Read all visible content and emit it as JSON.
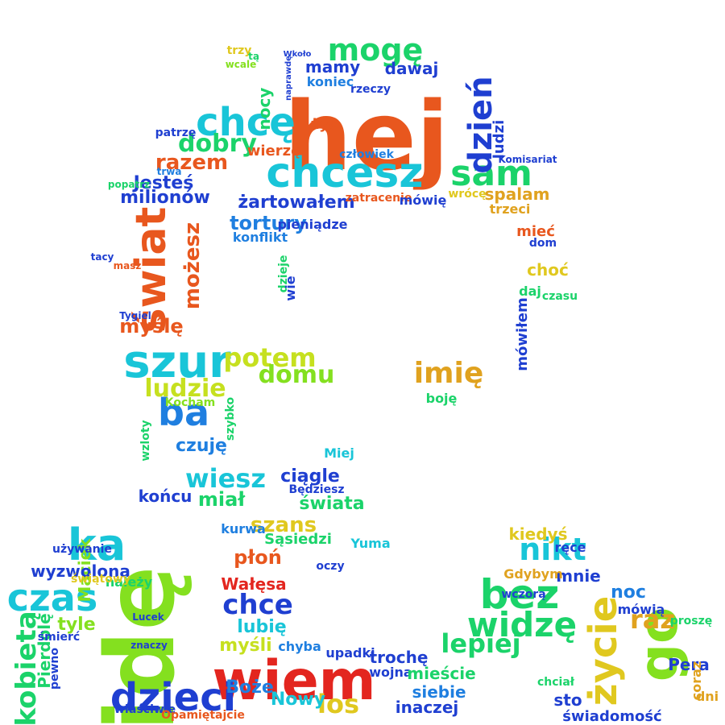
{
  "words": [
    {
      "text": "hej",
      "color": "#e8571e"
    },
    {
      "text": "idę",
      "color": "#84e01f"
    },
    {
      "text": "wiem",
      "color": "#e3261f"
    },
    {
      "text": "chcesz",
      "color": "#19c5d8"
    },
    {
      "text": "dzieci",
      "color": "#1f3fd1"
    },
    {
      "text": "szur",
      "color": "#19c5d8"
    },
    {
      "text": "świat",
      "color": "#e8571e"
    },
    {
      "text": "czas",
      "color": "#19c5d8"
    },
    {
      "text": "go",
      "color": "#84e01f"
    },
    {
      "text": "ka",
      "color": "#19c5d8"
    },
    {
      "text": "ba",
      "color": "#1f7fe0"
    },
    {
      "text": "bez",
      "color": "#1bd36a"
    },
    {
      "text": "widzę",
      "color": "#1bd36a"
    },
    {
      "text": "życie",
      "color": "#e0c81f"
    },
    {
      "text": "chcę",
      "color": "#19c5d8"
    },
    {
      "text": "mogę",
      "color": "#1bd36a"
    },
    {
      "text": "sam",
      "color": "#1bd36a"
    },
    {
      "text": "dzień",
      "color": "#1f3fd1"
    },
    {
      "text": "potem",
      "color": "#c6e01f"
    },
    {
      "text": "ludzie",
      "color": "#c6e01f"
    },
    {
      "text": "domu",
      "color": "#84e01f"
    },
    {
      "text": "imię",
      "color": "#e0a21f"
    },
    {
      "text": "wiesz",
      "color": "#19c5d8"
    },
    {
      "text": "chce",
      "color": "#1f3fd1"
    },
    {
      "text": "lepiej",
      "color": "#1bd36a"
    },
    {
      "text": "nikt",
      "color": "#19c5d8"
    },
    {
      "text": "raz",
      "color": "#e0a21f"
    },
    {
      "text": "kobietą",
      "color": "#1bd36a"
    },
    {
      "text": "dobry",
      "color": "#1bd36a"
    },
    {
      "text": "razem",
      "color": "#e8571e"
    },
    {
      "text": "milionów",
      "color": "#1f3fd1"
    },
    {
      "text": "Jesteś",
      "color": "#1f3fd1"
    },
    {
      "text": "żartowałem",
      "color": "#1f3fd1"
    },
    {
      "text": "tortury",
      "color": "#1f7fe0"
    },
    {
      "text": "mamy",
      "color": "#1f3fd1"
    },
    {
      "text": "dawaj",
      "color": "#1f3fd1"
    },
    {
      "text": "koniec",
      "color": "#1f7fe0"
    },
    {
      "text": "możesz",
      "color": "#e8571e"
    },
    {
      "text": "myślę",
      "color": "#e8571e"
    },
    {
      "text": "czuję",
      "color": "#1f7fe0"
    },
    {
      "text": "miał",
      "color": "#1bd36a"
    },
    {
      "text": "końcu",
      "color": "#1f3fd1"
    },
    {
      "text": "ciągle",
      "color": "#1f3fd1"
    },
    {
      "text": "świata",
      "color": "#1bd36a"
    },
    {
      "text": "szans",
      "color": "#e0c81f"
    },
    {
      "text": "Maciek",
      "color": "#84e01f"
    },
    {
      "text": "wyzwolona",
      "color": "#1f3fd1"
    },
    {
      "text": "Pierdolę",
      "color": "#1bd36a"
    },
    {
      "text": "tyle",
      "color": "#84e01f"
    },
    {
      "text": "lubię",
      "color": "#19c5d8"
    },
    {
      "text": "myśli",
      "color": "#c6e01f"
    },
    {
      "text": "Boże",
      "color": "#1f7fe0"
    },
    {
      "text": "los",
      "color": "#e0c81f"
    },
    {
      "text": "Nowy",
      "color": "#19c5d8"
    },
    {
      "text": "płoń",
      "color": "#e8571e"
    },
    {
      "text": "Wałęsa",
      "color": "#e3261f"
    },
    {
      "text": "trochę",
      "color": "#1f3fd1"
    },
    {
      "text": "wojna",
      "color": "#1f3fd1"
    },
    {
      "text": "inaczej",
      "color": "#1f3fd1"
    },
    {
      "text": "siebie",
      "color": "#1f7fe0"
    },
    {
      "text": "mieście",
      "color": "#1bd36a"
    },
    {
      "text": "mnie",
      "color": "#1f3fd1"
    },
    {
      "text": "kiedyś",
      "color": "#e0c81f"
    },
    {
      "text": "noc",
      "color": "#1f7fe0"
    },
    {
      "text": "mówią",
      "color": "#1f3fd1"
    },
    {
      "text": "Pera",
      "color": "#1f3fd1"
    },
    {
      "text": "coraz",
      "color": "#e0a21f"
    },
    {
      "text": "dni",
      "color": "#e0a21f"
    },
    {
      "text": "sto",
      "color": "#1f3fd1"
    },
    {
      "text": "świadomość",
      "color": "#1f3fd1"
    },
    {
      "text": "spalam",
      "color": "#e0a21f"
    },
    {
      "text": "mieć",
      "color": "#e8571e"
    },
    {
      "text": "choć",
      "color": "#e0c81f"
    },
    {
      "text": "mówiłem",
      "color": "#1f3fd1"
    },
    {
      "text": "Sąsiedzi",
      "color": "#1bd36a"
    },
    {
      "text": "Yuma",
      "color": "#19c5d8"
    },
    {
      "text": "Będziesz",
      "color": "#1f3fd1"
    },
    {
      "text": "kurwa",
      "color": "#1f7fe0"
    },
    {
      "text": "chyba",
      "color": "#1f7fe0"
    },
    {
      "text": "upadki",
      "color": "#1f3fd1"
    },
    {
      "text": "konflikt",
      "color": "#1f7fe0"
    },
    {
      "text": "pieniądze",
      "color": "#1f3fd1"
    },
    {
      "text": "wierzę",
      "color": "#e8571e"
    },
    {
      "text": "patrzę",
      "color": "#1f3fd1"
    },
    {
      "text": "życ",
      "color": "#e8571e"
    },
    {
      "text": "rzeczy",
      "color": "#1f3fd1"
    },
    {
      "text": "ludzi",
      "color": "#1f3fd1"
    },
    {
      "text": "trzeci",
      "color": "#e0a21f"
    },
    {
      "text": "nocy",
      "color": "#1bd36a"
    },
    {
      "text": "boję",
      "color": "#1bd36a"
    },
    {
      "text": "człowiek",
      "color": "#1f7fe0"
    },
    {
      "text": "zatracenie",
      "color": "#e8571e"
    },
    {
      "text": "mówię",
      "color": "#1f3fd1"
    },
    {
      "text": "wrócę",
      "color": "#e0c81f"
    },
    {
      "text": "należy",
      "color": "#1bd36a"
    },
    {
      "text": "wczorą",
      "color": "#1f3fd1"
    },
    {
      "text": "ręce",
      "color": "#1f3fd1"
    },
    {
      "text": "Gdybym",
      "color": "#e0a21f"
    },
    {
      "text": "proszę",
      "color": "#1bd36a"
    },
    {
      "text": "czasu",
      "color": "#1bd36a"
    },
    {
      "text": "dom",
      "color": "#1f3fd1"
    },
    {
      "text": "daj",
      "color": "#1bd36a"
    },
    {
      "text": "szybko",
      "color": "#1bd36a"
    },
    {
      "text": "oczy",
      "color": "#1f3fd1"
    },
    {
      "text": "używanie",
      "color": "#1f3fd1"
    },
    {
      "text": "świątowy",
      "color": "#e0c81f"
    },
    {
      "text": "śmierć",
      "color": "#1f3fd1"
    },
    {
      "text": "pewno",
      "color": "#1f3fd1"
    },
    {
      "text": "Miej",
      "color": "#19c5d8"
    },
    {
      "text": "Kocham",
      "color": "#84e01f"
    },
    {
      "text": "wzloty",
      "color": "#1bd36a"
    },
    {
      "text": "Lucek",
      "color": "#1f3fd1"
    },
    {
      "text": "znaczy",
      "color": "#1f3fd1"
    },
    {
      "text": "właściwie",
      "color": "#1f3fd1"
    },
    {
      "text": "Opamiętajcie",
      "color": "#e8571e"
    },
    {
      "text": "Tygiel",
      "color": "#1f3fd1"
    },
    {
      "text": "dzieje",
      "color": "#1bd36a"
    },
    {
      "text": "wie",
      "color": "#1f3fd1"
    },
    {
      "text": "trzy",
      "color": "#e0c81f"
    },
    {
      "text": "tą",
      "color": "#1bd36a"
    },
    {
      "text": "wcale",
      "color": "#84e01f"
    },
    {
      "text": "naprawdę",
      "color": "#1f3fd1"
    },
    {
      "text": "Wkoło",
      "color": "#1f3fd1"
    },
    {
      "text": "chciał",
      "color": "#1bd36a"
    },
    {
      "text": "Komisariat",
      "color": "#1f3fd1"
    },
    {
      "text": "tacy",
      "color": "#1f3fd1"
    },
    {
      "text": "masz",
      "color": "#e8571e"
    },
    {
      "text": "popatrz",
      "color": "#1bd36a"
    },
    {
      "text": "trwa",
      "color": "#1f7fe0"
    }
  ]
}
